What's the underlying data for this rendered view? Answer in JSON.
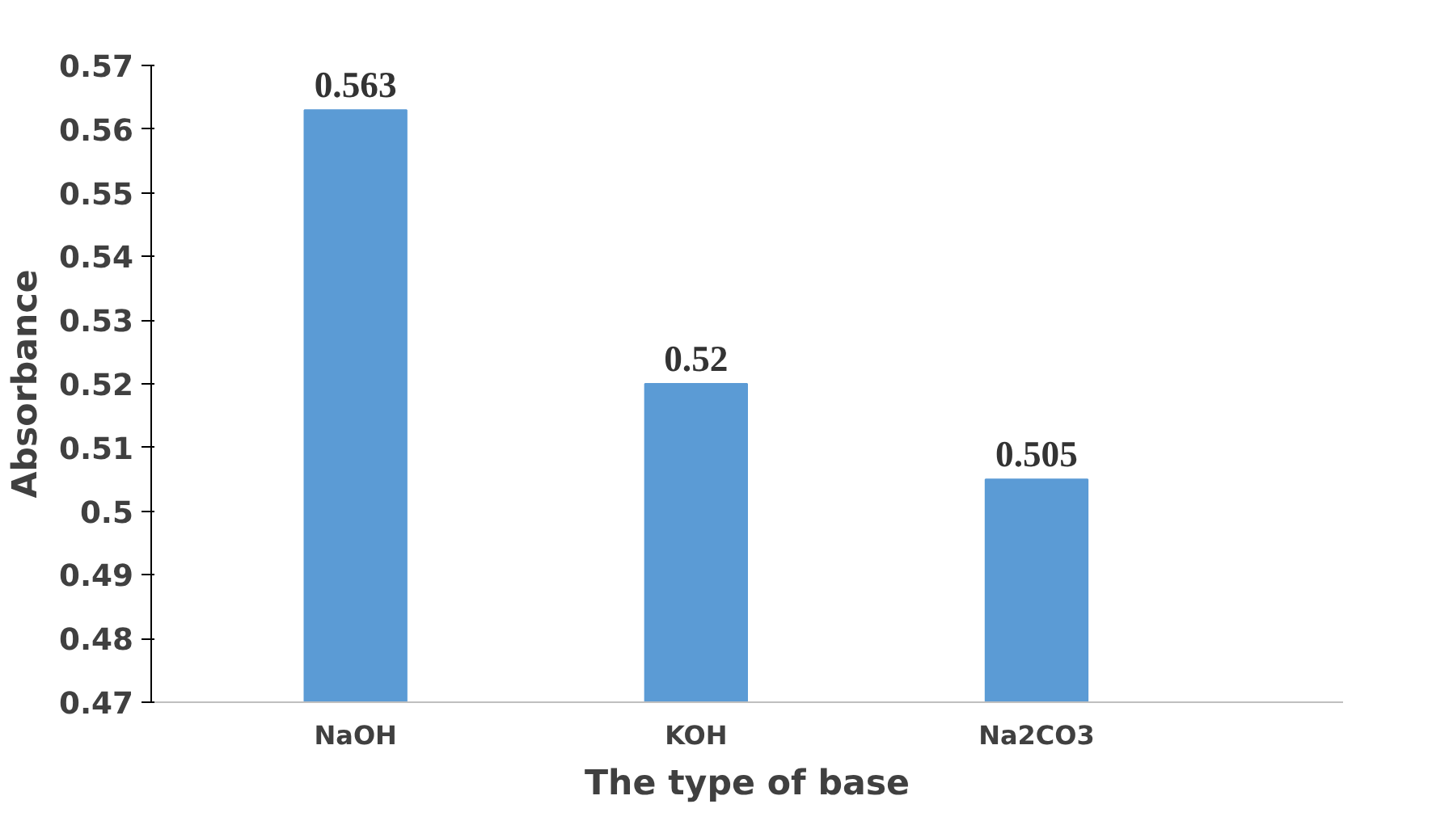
{
  "chart_data": {
    "type": "bar",
    "xlabel": "The type of base",
    "ylabel": "Absorbance",
    "categories": [
      "NaOH",
      "KOH",
      "Na2CO3"
    ],
    "values": [
      0.563,
      0.52,
      0.505
    ],
    "color": "#5b9bd5",
    "ylim": [
      0.47,
      0.57
    ],
    "yticks": [
      0.47,
      0.48,
      0.49,
      0.5,
      0.51,
      0.52,
      0.53,
      0.54,
      0.55,
      0.56,
      0.57
    ],
    "data_labels": true,
    "grid": false
  }
}
